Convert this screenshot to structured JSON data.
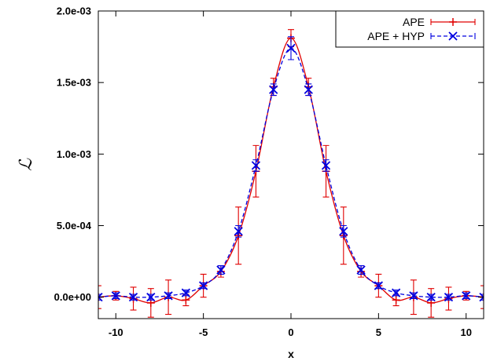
{
  "chart_data": {
    "type": "line",
    "title": "",
    "xlabel": "x",
    "ylabel": "ℒ",
    "xlim": [
      -11,
      11
    ],
    "ylim": [
      -0.00015,
      0.002
    ],
    "x_ticks": [
      -10,
      -5,
      0,
      5,
      10
    ],
    "x_tick_labels": [
      "-10",
      "-5",
      "0",
      "5",
      "10"
    ],
    "y_ticks": [
      0,
      0.0005,
      0.001,
      0.0015,
      0.002
    ],
    "y_tick_labels": [
      "0.0e+00",
      "5.0e-04",
      "1.0e-03",
      "1.5e-03",
      "2.0e-03"
    ],
    "grid": false,
    "legend_position": "top-right",
    "series": [
      {
        "name": "APE",
        "color": "#e00000",
        "line_style": "solid",
        "marker": "plus",
        "x": [
          -11,
          -10,
          -9,
          -8,
          -7,
          -6,
          -5,
          -4,
          -3,
          -2,
          -1,
          0,
          1,
          2,
          3,
          4,
          5,
          6,
          7,
          8,
          9,
          10,
          11
        ],
        "y": [
          0.0,
          1e-05,
          -1e-05,
          -4e-05,
          0.0,
          -2e-05,
          8e-05,
          0.00018,
          0.00043,
          0.00088,
          0.00147,
          0.00181,
          0.00147,
          0.00088,
          0.00043,
          0.00018,
          8e-05,
          -2e-05,
          0.0,
          -4e-05,
          -1e-05,
          1e-05,
          0.0
        ],
        "error": [
          8e-05,
          3e-05,
          8e-05,
          0.0001,
          0.00012,
          4e-05,
          8e-05,
          4e-05,
          0.0002,
          0.00018,
          6e-05,
          6e-05,
          6e-05,
          0.00018,
          0.0002,
          4e-05,
          8e-05,
          4e-05,
          0.00012,
          0.0001,
          8e-05,
          3e-05,
          8e-05
        ]
      },
      {
        "name": "APE + HYP",
        "color": "#0000e0",
        "line_style": "dashed",
        "marker": "x",
        "x": [
          -11,
          -10,
          -9,
          -8,
          -7,
          -6,
          -5,
          -4,
          -3,
          -2,
          -1,
          0,
          1,
          2,
          3,
          4,
          5,
          6,
          7,
          8,
          9,
          10,
          11
        ],
        "y": [
          0.0,
          1e-05,
          0.0,
          0.0,
          1e-05,
          3e-05,
          8e-05,
          0.00019,
          0.00046,
          0.00092,
          0.00145,
          0.00174,
          0.00145,
          0.00092,
          0.00046,
          0.00019,
          8e-05,
          3e-05,
          1e-05,
          0.0,
          0.0,
          1e-05,
          0.0
        ],
        "error": [
          2e-05,
          2e-05,
          2e-05,
          2e-05,
          2e-05,
          2e-05,
          2e-05,
          3e-05,
          4e-05,
          4e-05,
          4e-05,
          8e-05,
          4e-05,
          4e-05,
          4e-05,
          3e-05,
          2e-05,
          2e-05,
          2e-05,
          2e-05,
          2e-05,
          2e-05,
          2e-05
        ]
      }
    ]
  }
}
